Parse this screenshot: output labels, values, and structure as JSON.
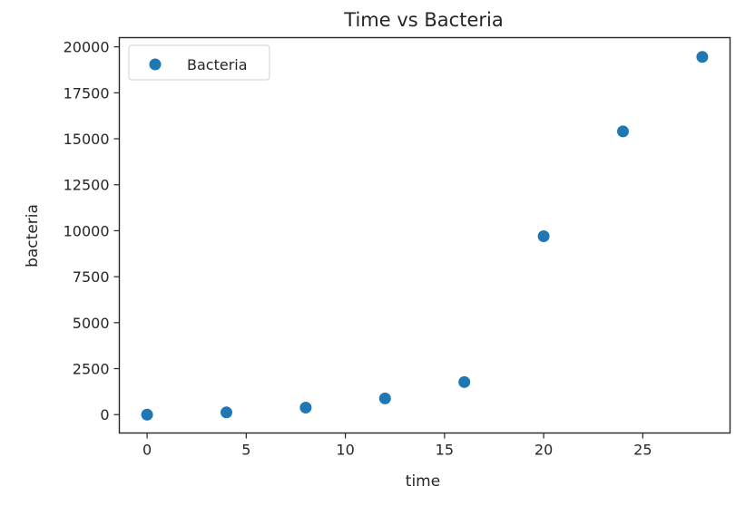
{
  "chart_data": {
    "type": "scatter",
    "title": "Time vs Bacteria",
    "xlabel": "time",
    "ylabel": "bacteria",
    "xlim": [
      -1.4,
      29.4
    ],
    "ylim": [
      -1000,
      20500
    ],
    "xticks": [
      0,
      5,
      10,
      15,
      20,
      25
    ],
    "yticks": [
      0,
      2500,
      5000,
      7500,
      10000,
      12500,
      15000,
      17500,
      20000
    ],
    "grid": false,
    "legend_position": "upper-left",
    "series": [
      {
        "name": "Bacteria",
        "color": "#1f77b4",
        "x": [
          0,
          4,
          8,
          12,
          16,
          20,
          24,
          28
        ],
        "y": [
          0,
          120,
          380,
          880,
          1770,
          9700,
          15400,
          19450
        ]
      }
    ]
  }
}
